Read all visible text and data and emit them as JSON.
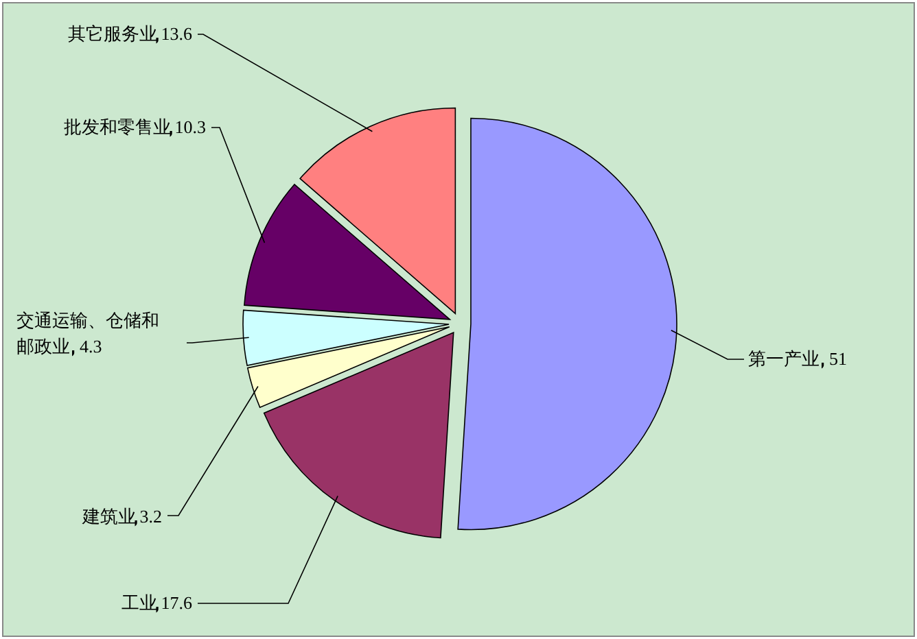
{
  "chart_data": {
    "type": "pie",
    "categories": [
      "第一产业",
      "工业",
      "建筑业",
      "交通运输、仓储和邮政业",
      "批发和零售业",
      "其它服务业"
    ],
    "values": [
      51,
      17.6,
      3.2,
      4.3,
      10.3,
      13.6
    ],
    "colors": [
      "#9999ff",
      "#993366",
      "#ffffcc",
      "#ccffff",
      "#660066",
      "#ff8080"
    ],
    "data_labels": true
  }
}
